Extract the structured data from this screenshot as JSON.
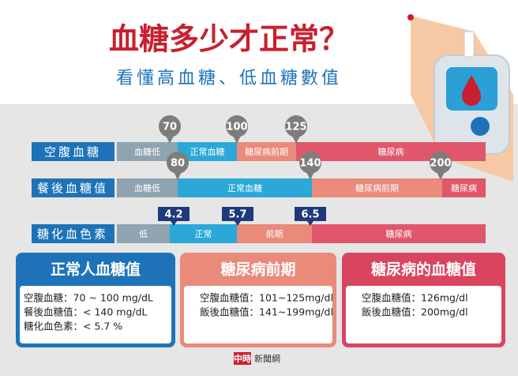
{
  "header": {
    "title": "血糖多少才正常？",
    "subtitle": "看懂高血糖、低血糖數值"
  },
  "scales": [
    {
      "label": "空腹血糖",
      "markers": [
        "70",
        "100",
        "125"
      ],
      "segments": [
        "血糖低",
        "正常血糖",
        "糖尿病前期",
        "糖尿病"
      ]
    },
    {
      "label": "餐後血糖值",
      "markers": [
        "80",
        "140",
        "200"
      ],
      "segments": [
        "血糖低",
        "正常血糖",
        "糖尿病前期",
        "糖尿病"
      ]
    },
    {
      "label": "糖化血色素",
      "markers": [
        "4.2",
        "5.7",
        "6.5"
      ],
      "segments": [
        "低",
        "正常",
        "前期",
        "糖尿病"
      ]
    }
  ],
  "cards": [
    {
      "title": "正常人血糖值",
      "lines": [
        "空腹血糖：70 ~ 100 mg/dL",
        "餐後血糖值：< 140 mg/dL",
        "糖化血色素：< 5.7 %"
      ]
    },
    {
      "title": "糖尿病前期",
      "lines": [
        "空腹血糖值：101~125mg/dl",
        "飯後血糖值：141~199mg/dl"
      ]
    },
    {
      "title": "糖尿病的血糖值",
      "lines": [
        "空腹血糖值：126mg/dl",
        "飯後血糖值：200mg/dl"
      ]
    }
  ],
  "footer": {
    "logo": "中時",
    "source": "新聞網"
  }
}
